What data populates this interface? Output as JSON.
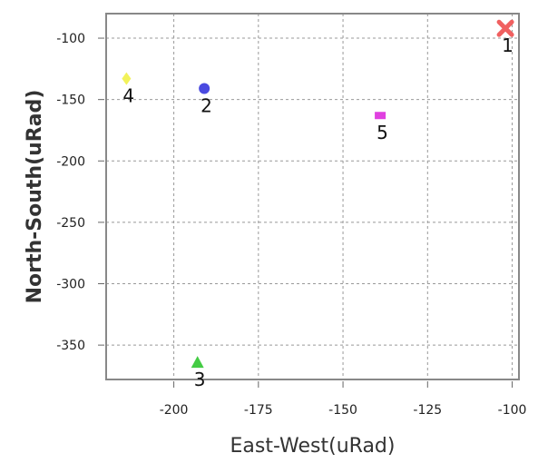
{
  "chart_data": {
    "type": "scatter",
    "title": "",
    "xlabel": "East-West(uRad)",
    "ylabel": "North-South(uRad)",
    "xlim": [
      -220,
      -98
    ],
    "ylim": [
      -378,
      -80
    ],
    "x_ticks": [
      -200,
      -175,
      -150,
      -125,
      -100
    ],
    "y_ticks": [
      -100,
      -150,
      -200,
      -250,
      -300,
      -350
    ],
    "grid": true,
    "legend": "none",
    "points": [
      {
        "label": "1",
        "x": -102,
        "y": -92,
        "marker": "x",
        "color": "#f06060"
      },
      {
        "label": "2",
        "x": -191,
        "y": -141,
        "marker": "circle",
        "color": "#4a4ae0"
      },
      {
        "label": "3",
        "x": -193,
        "y": -364,
        "marker": "triangle",
        "color": "#44cc44"
      },
      {
        "label": "4",
        "x": -214,
        "y": -133,
        "marker": "diamond",
        "color": "#f2f25a"
      },
      {
        "label": "5",
        "x": -139,
        "y": -163,
        "marker": "square",
        "color": "#e040e0"
      }
    ]
  }
}
